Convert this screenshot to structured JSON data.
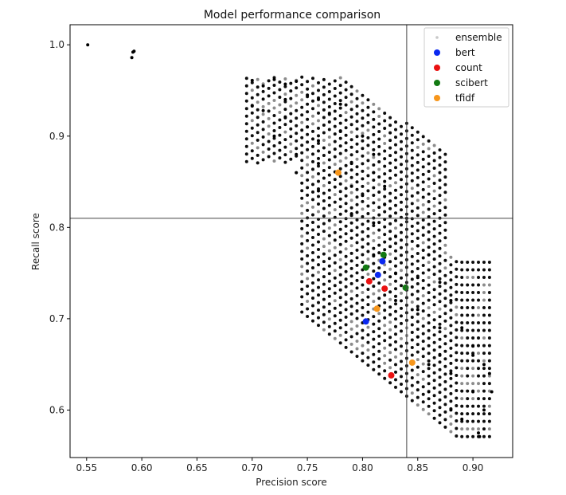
{
  "chart_data": {
    "type": "scatter",
    "title": "Model performance comparison",
    "xlabel": "Precision score",
    "ylabel": "Recall score",
    "xlim": [
      0.535,
      0.936
    ],
    "ylim": [
      0.548,
      1.022
    ],
    "xticks": [
      "0.55",
      "0.60",
      "0.65",
      "0.70",
      "0.75",
      "0.80",
      "0.85",
      "0.90"
    ],
    "yticks": [
      "0.6",
      "0.7",
      "0.8",
      "0.9",
      "1.0"
    ],
    "grid": false,
    "legend_position": "top-right",
    "reference_lines": {
      "x": 0.84,
      "y": 0.81
    },
    "ensemble_region": {
      "description_points": "dense cloud of ensemble combinations (not individually labeled)",
      "x_range": [
        0.695,
        0.918
      ],
      "y_range": [
        0.571,
        0.964
      ]
    },
    "series": [
      {
        "name": "ensemble",
        "color": "#000000",
        "legend_color": "#c8c8c8",
        "points": [
          [
            0.551,
            1.0
          ],
          [
            0.591,
            0.986
          ],
          [
            0.593,
            0.993
          ],
          [
            0.592,
            0.992
          ],
          [
            0.7,
            0.961
          ],
          [
            0.71,
            0.955
          ],
          [
            0.72,
            0.962
          ],
          [
            0.73,
            0.957
          ],
          [
            0.74,
            0.96
          ],
          [
            0.7,
            0.933
          ],
          [
            0.71,
            0.928
          ],
          [
            0.73,
            0.94
          ],
          [
            0.75,
            0.945
          ],
          [
            0.76,
            0.94
          ],
          [
            0.72,
            0.9
          ],
          [
            0.73,
            0.92
          ],
          [
            0.75,
            0.91
          ],
          [
            0.77,
            0.925
          ],
          [
            0.78,
            0.935
          ],
          [
            0.74,
            0.88
          ],
          [
            0.76,
            0.895
          ],
          [
            0.78,
            0.905
          ],
          [
            0.8,
            0.9
          ],
          [
            0.81,
            0.88
          ],
          [
            0.74,
            0.86
          ],
          [
            0.76,
            0.87
          ],
          [
            0.79,
            0.87
          ],
          [
            0.81,
            0.86
          ],
          [
            0.82,
            0.845
          ],
          [
            0.76,
            0.84
          ],
          [
            0.79,
            0.845
          ],
          [
            0.8,
            0.835
          ],
          [
            0.82,
            0.825
          ],
          [
            0.84,
            0.81
          ],
          [
            0.79,
            0.815
          ],
          [
            0.81,
            0.805
          ],
          [
            0.83,
            0.79
          ],
          [
            0.85,
            0.78
          ],
          [
            0.86,
            0.77
          ],
          [
            0.81,
            0.77
          ],
          [
            0.83,
            0.75
          ],
          [
            0.85,
            0.745
          ],
          [
            0.87,
            0.74
          ],
          [
            0.88,
            0.72
          ],
          [
            0.83,
            0.72
          ],
          [
            0.85,
            0.71
          ],
          [
            0.87,
            0.69
          ],
          [
            0.89,
            0.69
          ],
          [
            0.9,
            0.67
          ],
          [
            0.85,
            0.68
          ],
          [
            0.86,
            0.65
          ],
          [
            0.88,
            0.64
          ],
          [
            0.9,
            0.62
          ],
          [
            0.91,
            0.6
          ],
          [
            0.86,
            0.62
          ],
          [
            0.88,
            0.6
          ],
          [
            0.89,
            0.59
          ],
          [
            0.905,
            0.575
          ],
          [
            0.906,
            0.571
          ],
          [
            0.917,
            0.62
          ],
          [
            0.915,
            0.64
          ],
          [
            0.91,
            0.65
          ],
          [
            0.9,
            0.66
          ],
          [
            0.87,
            0.66
          ]
        ]
      },
      {
        "name": "bert",
        "color": "#0a28f0",
        "points": [
          [
            0.818,
            0.763
          ],
          [
            0.814,
            0.748
          ],
          [
            0.803,
            0.697
          ]
        ]
      },
      {
        "name": "count",
        "color": "#ea1111",
        "points": [
          [
            0.806,
            0.741
          ],
          [
            0.82,
            0.733
          ],
          [
            0.826,
            0.638
          ]
        ]
      },
      {
        "name": "scibert",
        "color": "#137a13",
        "points": [
          [
            0.819,
            0.77
          ],
          [
            0.803,
            0.756
          ],
          [
            0.839,
            0.734
          ]
        ]
      },
      {
        "name": "tfidf",
        "color": "#f7961b",
        "points": [
          [
            0.778,
            0.86
          ],
          [
            0.813,
            0.711
          ],
          [
            0.845,
            0.652
          ]
        ]
      }
    ]
  }
}
